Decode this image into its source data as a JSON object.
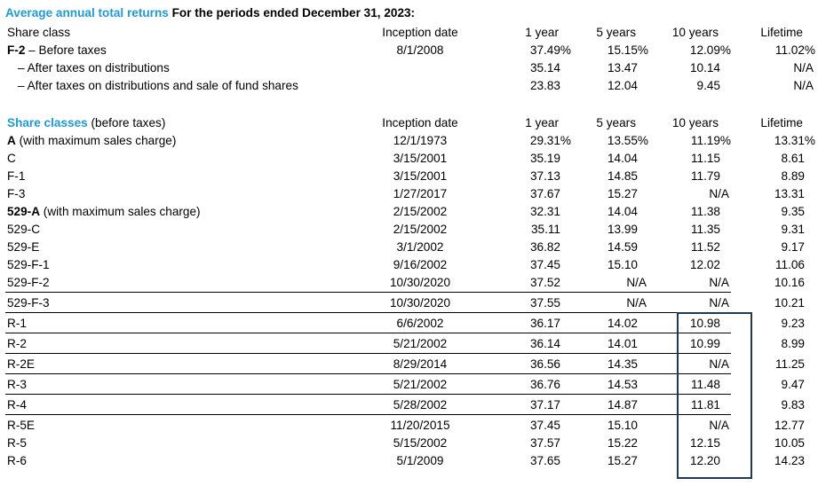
{
  "title": {
    "highlight": "Average annual total returns",
    "rest": " For the periods ended December 31, 2023:"
  },
  "colors": {
    "accent_blue": "#1e9bd7",
    "highlight_box_border": "#1f3a54",
    "text": "#000000",
    "separator_line": "#000000"
  },
  "table1": {
    "row_label_header": "Share class",
    "col_headers": [
      "Inception date",
      "1 year",
      "5 years",
      "10 years",
      "Lifetime"
    ],
    "rows": [
      {
        "label_bold": "F-2",
        "label_rest": " – Before taxes",
        "indent": false,
        "line_above": false,
        "cells": [
          "8/1/2008",
          "37.49%",
          "15.15%",
          "12.09%",
          "11.02%"
        ]
      },
      {
        "label_bold": "",
        "label_rest": "– After taxes on distributions",
        "indent": true,
        "line_above": false,
        "cells": [
          "",
          "35.14",
          "13.47",
          "10.14",
          "N/A"
        ]
      },
      {
        "label_bold": "",
        "label_rest": "– After taxes on distributions and sale of fund shares",
        "indent": true,
        "line_above": false,
        "cells": [
          "",
          "23.83",
          "12.04",
          "9.45",
          "N/A"
        ]
      }
    ]
  },
  "table2": {
    "row_label_header_highlight": "Share classes",
    "row_label_header_rest": " (before taxes)",
    "col_headers": [
      "Inception date",
      "1 year",
      "5 years",
      "10 years",
      "Lifetime"
    ],
    "rows": [
      {
        "label_bold": "A",
        "label_rest": " (with maximum sales charge)",
        "indent": false,
        "line_above": false,
        "cells": [
          "12/1/1973",
          "29.31%",
          "13.55%",
          "11.19%",
          "13.31%"
        ]
      },
      {
        "label_bold": "",
        "label_rest": "C",
        "indent": false,
        "line_above": false,
        "cells": [
          "3/15/2001",
          "35.19",
          "14.04",
          "11.15",
          "8.61"
        ]
      },
      {
        "label_bold": "",
        "label_rest": "F-1",
        "indent": false,
        "line_above": false,
        "cells": [
          "3/15/2001",
          "37.13",
          "14.85",
          "11.79",
          "8.89"
        ]
      },
      {
        "label_bold": "",
        "label_rest": "F-3",
        "indent": false,
        "line_above": false,
        "cells": [
          "1/27/2017",
          "37.67",
          "15.27",
          "N/A",
          "13.31"
        ]
      },
      {
        "label_bold": "529-A",
        "label_rest": " (with maximum sales charge)",
        "indent": false,
        "line_above": false,
        "cells": [
          "2/15/2002",
          "32.31",
          "14.04",
          "11.38",
          "9.35"
        ]
      },
      {
        "label_bold": "",
        "label_rest": "529-C",
        "indent": false,
        "line_above": false,
        "cells": [
          "2/15/2002",
          "35.11",
          "13.99",
          "11.35",
          "9.31"
        ]
      },
      {
        "label_bold": "",
        "label_rest": "529-E",
        "indent": false,
        "line_above": false,
        "cells": [
          "3/1/2002",
          "36.82",
          "14.59",
          "11.52",
          "9.17"
        ]
      },
      {
        "label_bold": "",
        "label_rest": "529-F-1",
        "indent": false,
        "line_above": false,
        "cells": [
          "9/16/2002",
          "37.45",
          "15.10",
          "12.02",
          "11.06"
        ]
      },
      {
        "label_bold": "",
        "label_rest": "529-F-2",
        "indent": false,
        "line_above": false,
        "cells": [
          "10/30/2020",
          "37.52",
          "N/A",
          "N/A",
          "10.16"
        ]
      },
      {
        "label_bold": "",
        "label_rest": "529-F-3",
        "indent": false,
        "line_above": true,
        "cells": [
          "10/30/2020",
          "37.55",
          "N/A",
          "N/A",
          "10.21"
        ]
      },
      {
        "label_bold": "",
        "label_rest": "R-1",
        "indent": false,
        "line_above": true,
        "cells": [
          "6/6/2002",
          "36.17",
          "14.02",
          "10.98",
          "9.23"
        ]
      },
      {
        "label_bold": "",
        "label_rest": "R-2",
        "indent": false,
        "line_above": true,
        "cells": [
          "5/21/2002",
          "36.14",
          "14.01",
          "10.99",
          "8.99"
        ]
      },
      {
        "label_bold": "",
        "label_rest": "R-2E",
        "indent": false,
        "line_above": true,
        "cells": [
          "8/29/2014",
          "36.56",
          "14.35",
          "N/A",
          "11.25"
        ]
      },
      {
        "label_bold": "",
        "label_rest": "R-3",
        "indent": false,
        "line_above": true,
        "cells": [
          "5/21/2002",
          "36.76",
          "14.53",
          "11.48",
          "9.47"
        ]
      },
      {
        "label_bold": "",
        "label_rest": "R-4",
        "indent": false,
        "line_above": true,
        "cells": [
          "5/28/2002",
          "37.17",
          "14.87",
          "11.81",
          "9.83"
        ]
      },
      {
        "label_bold": "",
        "label_rest": "R-5E",
        "indent": false,
        "line_above": true,
        "cells": [
          "11/20/2015",
          "37.45",
          "15.10",
          "N/A",
          "12.77"
        ]
      },
      {
        "label_bold": "",
        "label_rest": "R-5",
        "indent": false,
        "line_above": false,
        "cells": [
          "5/15/2002",
          "37.57",
          "15.22",
          "12.15",
          "10.05"
        ]
      },
      {
        "label_bold": "",
        "label_rest": "R-6",
        "indent": false,
        "line_above": false,
        "cells": [
          "5/1/2009",
          "37.65",
          "15.27",
          "12.20",
          "14.23"
        ]
      }
    ]
  },
  "highlight_box": {
    "column": "10 years",
    "rows_covered": "R-1 through R-6"
  }
}
